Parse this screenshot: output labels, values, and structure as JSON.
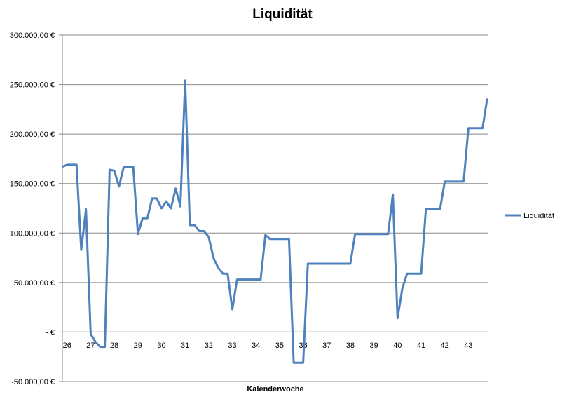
{
  "chart_data": {
    "type": "line",
    "title": "Liquidität",
    "xlabel": "Kalenderwoche",
    "ylabel": "",
    "ylim": [
      -50000,
      300000
    ],
    "xlim": [
      25.8,
      43.85
    ],
    "y_ticks": [
      300000,
      250000,
      200000,
      150000,
      100000,
      50000,
      0,
      -50000
    ],
    "y_tick_labels": [
      "300.000,00 €",
      "250.000,00 €",
      "200.000,00 €",
      "150.000,00 €",
      "100.000,00 €",
      "50.000,00 €",
      "-   €",
      "-50.000,00 €"
    ],
    "x_tick_labels": [
      "26",
      "27",
      "28",
      "29",
      "30",
      "31",
      "32",
      "33",
      "34",
      "35",
      "36",
      "37",
      "38",
      "39",
      "40",
      "41",
      "42",
      "43"
    ],
    "grid": "horizontal",
    "legend_position": "right",
    "color": "#4f81bd",
    "series": [
      {
        "name": "Liquidität",
        "x": [
          25.8,
          26.0,
          26.2,
          26.4,
          26.6,
          26.8,
          27.0,
          27.2,
          27.4,
          27.6,
          27.8,
          28.0,
          28.2,
          28.4,
          28.6,
          28.8,
          29.0,
          29.2,
          29.4,
          29.6,
          29.8,
          30.0,
          30.2,
          30.4,
          30.6,
          30.8,
          31.0,
          31.2,
          31.4,
          31.6,
          31.8,
          32.0,
          32.2,
          32.4,
          32.6,
          32.8,
          33.0,
          33.2,
          33.4,
          33.6,
          33.8,
          34.0,
          34.2,
          34.4,
          34.6,
          34.8,
          35.0,
          35.2,
          35.4,
          35.6,
          35.8,
          36.0,
          36.2,
          36.4,
          36.6,
          36.8,
          37.0,
          37.2,
          37.4,
          37.6,
          37.8,
          38.0,
          38.2,
          38.4,
          38.6,
          38.8,
          39.0,
          39.2,
          39.4,
          39.6,
          39.8,
          40.0,
          40.2,
          40.4,
          40.6,
          40.8,
          41.0,
          41.2,
          41.4,
          41.6,
          41.8,
          42.0,
          42.2,
          42.4,
          42.6,
          42.8,
          43.0,
          43.2,
          43.4,
          43.6,
          43.8
        ],
        "values": [
          167000,
          169000,
          169000,
          169000,
          83000,
          124000,
          -2000,
          -10000,
          -15000,
          -15000,
          164000,
          163000,
          147000,
          167000,
          167000,
          167000,
          99000,
          115000,
          115000,
          135000,
          135000,
          125000,
          132000,
          125000,
          145000,
          127000,
          254000,
          108000,
          108000,
          102000,
          102000,
          96000,
          75000,
          65000,
          59000,
          59000,
          23000,
          53000,
          53000,
          53000,
          53000,
          53000,
          53000,
          98000,
          94000,
          94000,
          94000,
          94000,
          94000,
          -31000,
          -31000,
          -31000,
          69000,
          69000,
          69000,
          69000,
          69000,
          69000,
          69000,
          69000,
          69000,
          69000,
          99000,
          99000,
          99000,
          99000,
          99000,
          99000,
          99000,
          99000,
          139000,
          14000,
          44000,
          59000,
          59000,
          59000,
          59000,
          124000,
          124000,
          124000,
          124000,
          152000,
          152000,
          152000,
          152000,
          152000,
          206000,
          206000,
          206000,
          206000,
          236000
        ]
      }
    ]
  }
}
